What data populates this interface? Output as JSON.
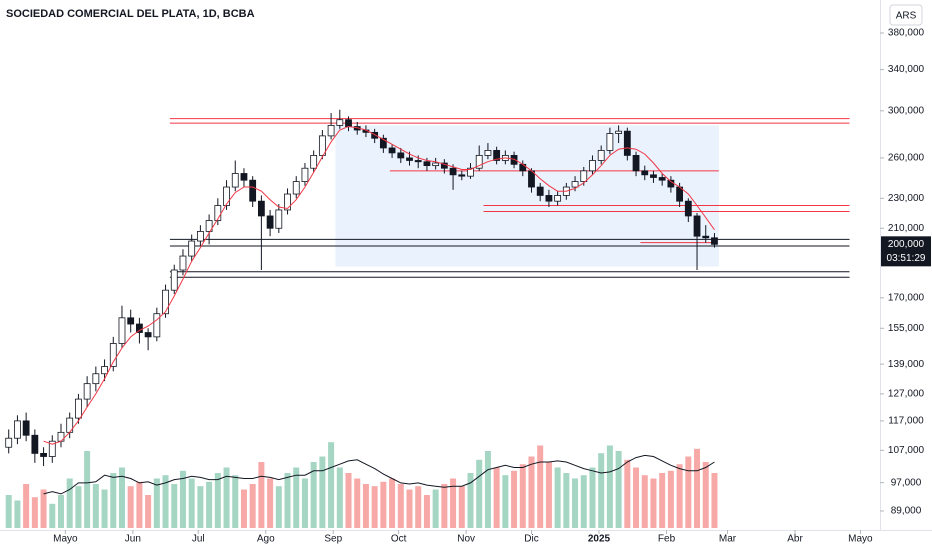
{
  "chart_data": {
    "type": "candlestick",
    "title": "SOCIEDAD COMERCIAL DEL PLATA, 1D, BCBA",
    "currency": "ARS",
    "log_scale": true,
    "up_color": "#089981",
    "down_color": "#f23645",
    "x": [
      4,
      8,
      12,
      16,
      20,
      24,
      28,
      32,
      36,
      40,
      44,
      48,
      52,
      56,
      60,
      64,
      68,
      72,
      76,
      80,
      84,
      88,
      92,
      96,
      100,
      104,
      108,
      112,
      116,
      120,
      124,
      128,
      132,
      136,
      140,
      144,
      148,
      152,
      156,
      160,
      164,
      168,
      172,
      176,
      180,
      184,
      188,
      192,
      196,
      200,
      204,
      208,
      212,
      216,
      220,
      224,
      228,
      232,
      236,
      240,
      244,
      248,
      252,
      256,
      260,
      264,
      268,
      272,
      276,
      280,
      284,
      288,
      292,
      296,
      300,
      304,
      308,
      312,
      316,
      320,
      324,
      328
    ],
    "open": [
      108000,
      111000,
      117000,
      112000,
      106000,
      105000,
      110000,
      113000,
      118000,
      125000,
      131000,
      135000,
      138000,
      148000,
      160000,
      157000,
      153000,
      151000,
      162000,
      174000,
      185000,
      193000,
      202000,
      208000,
      215000,
      225000,
      238000,
      248000,
      243000,
      228000,
      218000,
      210000,
      222000,
      233000,
      242000,
      252000,
      262000,
      278000,
      287000,
      292000,
      286000,
      283000,
      281000,
      276000,
      268000,
      264000,
      260000,
      258000,
      257000,
      254000,
      256000,
      252000,
      247000,
      246000,
      252000,
      262000,
      266000,
      258000,
      262000,
      255000,
      250000,
      238000,
      232000,
      228000,
      232000,
      238000,
      242000,
      250000,
      258000,
      266000,
      280000,
      282000,
      262000,
      250000,
      247000,
      245000,
      243000,
      238000,
      228000,
      218000,
      205000,
      204000
    ],
    "high": [
      114000,
      119000,
      120000,
      114000,
      108000,
      112000,
      116000,
      120000,
      127000,
      134000,
      138000,
      141000,
      151000,
      166000,
      164000,
      160000,
      155000,
      165000,
      177000,
      188000,
      197000,
      206000,
      212000,
      219000,
      230000,
      243000,
      258000,
      252000,
      246000,
      232000,
      222000,
      226000,
      237000,
      246000,
      256000,
      266000,
      283000,
      298000,
      301000,
      295000,
      290000,
      287000,
      284000,
      279000,
      271000,
      268000,
      265000,
      262000,
      260000,
      260000,
      259000,
      255000,
      250000,
      256000,
      270000,
      272000,
      269000,
      266000,
      265000,
      258000,
      252000,
      241000,
      236000,
      235000,
      241000,
      246000,
      253000,
      262000,
      270000,
      285000,
      287000,
      285000,
      265000,
      254000,
      250000,
      248000,
      246000,
      241000,
      230000,
      220000,
      212000,
      207000
    ],
    "low": [
      106000,
      109000,
      110000,
      103000,
      102000,
      103000,
      108000,
      111000,
      116000,
      122000,
      128000,
      132000,
      136000,
      146000,
      153000,
      148000,
      145000,
      149000,
      160000,
      172000,
      182000,
      190000,
      199000,
      200000,
      212000,
      222000,
      235000,
      238000,
      224000,
      185000,
      205000,
      207000,
      219000,
      230000,
      239000,
      249000,
      259000,
      275000,
      284000,
      282000,
      279000,
      277000,
      272000,
      264000,
      260000,
      256000,
      254000,
      252000,
      250000,
      251000,
      248000,
      236000,
      243000,
      244000,
      250000,
      259000,
      255000,
      255000,
      252000,
      246000,
      234000,
      228000,
      224000,
      225000,
      229000,
      235000,
      239000,
      247000,
      255000,
      263000,
      272000,
      258000,
      246000,
      243000,
      241000,
      239000,
      234000,
      224000,
      214000,
      185000,
      201000,
      198000
    ],
    "close": [
      111000,
      117000,
      112000,
      106000,
      105000,
      110000,
      113000,
      118000,
      125000,
      131000,
      135000,
      138000,
      148000,
      160000,
      157000,
      153000,
      151000,
      162000,
      174000,
      185000,
      193000,
      202000,
      208000,
      215000,
      225000,
      238000,
      248000,
      243000,
      228000,
      218000,
      210000,
      222000,
      233000,
      242000,
      252000,
      262000,
      278000,
      287000,
      292000,
      286000,
      283000,
      281000,
      276000,
      268000,
      264000,
      260000,
      258000,
      257000,
      254000,
      256000,
      252000,
      247000,
      246000,
      252000,
      262000,
      266000,
      258000,
      262000,
      255000,
      250000,
      238000,
      232000,
      228000,
      232000,
      238000,
      242000,
      250000,
      258000,
      266000,
      280000,
      282000,
      262000,
      250000,
      247000,
      245000,
      243000,
      238000,
      228000,
      218000,
      205000,
      204000,
      200000
    ],
    "ma": {
      "color": "#f23645",
      "values": [
        null,
        null,
        null,
        null,
        110000,
        109000,
        110000,
        113000,
        117000,
        122000,
        127000,
        133000,
        140000,
        146000,
        151000,
        154000,
        156000,
        159000,
        163000,
        171000,
        180000,
        190000,
        198000,
        207000,
        216000,
        226000,
        234000,
        238000,
        238000,
        235000,
        229000,
        224000,
        223000,
        229000,
        238000,
        249000,
        261000,
        273000,
        283000,
        286000,
        285000,
        283000,
        279000,
        275000,
        271000,
        267000,
        263000,
        260000,
        258000,
        257000,
        255000,
        253000,
        251000,
        251000,
        254000,
        257000,
        259000,
        260000,
        259000,
        255000,
        250000,
        244000,
        239000,
        235000,
        235000,
        237000,
        241000,
        247000,
        254000,
        262000,
        267000,
        268000,
        267000,
        263000,
        256000,
        248000,
        242000,
        238000,
        233000,
        225000,
        217000,
        209000
      ]
    },
    "volume": {
      "ylim": [
        0,
        100000
      ],
      "up_color": "#a5d6c4",
      "down_color": "#f7a9a7",
      "values": [
        30000,
        25000,
        40000,
        28000,
        35000,
        22000,
        30000,
        45000,
        38000,
        70000,
        40000,
        35000,
        50000,
        55000,
        38000,
        42000,
        30000,
        45000,
        48000,
        40000,
        52000,
        45000,
        38000,
        42000,
        50000,
        55000,
        48000,
        35000,
        40000,
        60000,
        45000,
        38000,
        50000,
        55000,
        45000,
        60000,
        65000,
        78000,
        55000,
        50000,
        45000,
        40000,
        38000,
        42000,
        45000,
        40000,
        35000,
        38000,
        30000,
        35000,
        40000,
        45000,
        38000,
        50000,
        62000,
        70000,
        55000,
        48000,
        52000,
        58000,
        65000,
        75000,
        60000,
        55000,
        50000,
        45000,
        48000,
        55000,
        68000,
        75000,
        70000,
        62000,
        55000,
        48000,
        45000,
        50000,
        52000,
        58000,
        65000,
        72000,
        60000,
        50000
      ]
    },
    "volume_ma": {
      "color": "#131722",
      "values": [
        null,
        null,
        null,
        null,
        31000,
        33000,
        31000,
        35000,
        41000,
        41000,
        42000,
        48000,
        46000,
        47000,
        45000,
        41000,
        42000,
        39000,
        41000,
        44000,
        45000,
        47000,
        46000,
        44000,
        44000,
        47000,
        46000,
        45000,
        45000,
        47000,
        46000,
        44000,
        46000,
        48000,
        48000,
        52000,
        52000,
        55000,
        58000,
        61000,
        62000,
        58000,
        54000,
        49000,
        45000,
        41000,
        40000,
        41000,
        39000,
        38000,
        37000,
        38000,
        38000,
        41000,
        47000,
        53000,
        55000,
        57000,
        55000,
        55000,
        58000,
        60000,
        60000,
        61000,
        60000,
        57000,
        54000,
        52000,
        50000,
        51000,
        54000,
        60000,
        64000,
        66000,
        65000,
        61000,
        57000,
        54000,
        52000,
        52000,
        55000,
        60000
      ]
    },
    "xlim": [
      0,
      404
    ],
    "xticks": [
      {
        "value": 30,
        "label": "Mayo"
      },
      {
        "value": 61,
        "label": "Jun"
      },
      {
        "value": 91,
        "label": "Jul"
      },
      {
        "value": 122,
        "label": "Ago"
      },
      {
        "value": 153,
        "label": "Sep"
      },
      {
        "value": 183,
        "label": "Oct"
      },
      {
        "value": 214,
        "label": "Nov"
      },
      {
        "value": 244,
        "label": "Dic"
      },
      {
        "value": 275,
        "label": "2025",
        "bold": true
      },
      {
        "value": 306,
        "label": "Feb"
      },
      {
        "value": 334,
        "label": "Mar"
      },
      {
        "value": 365,
        "label": "Abr"
      },
      {
        "value": 395,
        "label": "Mayo"
      }
    ],
    "ylim": [
      84000,
      420000
    ],
    "yticks": [
      {
        "value": 89000,
        "label": "89,000"
      },
      {
        "value": 97000,
        "label": "97,000"
      },
      {
        "value": 107000,
        "label": "107,000"
      },
      {
        "value": 117000,
        "label": "117,000"
      },
      {
        "value": 127000,
        "label": "127,000"
      },
      {
        "value": 139000,
        "label": "139,000"
      },
      {
        "value": 155000,
        "label": "155,000"
      },
      {
        "value": 170000,
        "label": "170,000"
      },
      {
        "value": 210000,
        "label": "210,000"
      },
      {
        "value": 230000,
        "label": "230,000"
      },
      {
        "value": 260000,
        "label": "260,000"
      },
      {
        "value": 300000,
        "label": "300,000"
      },
      {
        "value": 340000,
        "label": "340,000"
      },
      {
        "value": 380000,
        "label": "380,000"
      }
    ],
    "levels": [
      {
        "value": 293000,
        "color": "#f23645",
        "x": [
          78,
          390
        ]
      },
      {
        "value": 289000,
        "color": "#f23645",
        "x": [
          78,
          390
        ]
      },
      {
        "value": 250000,
        "color": "#f23645",
        "x": [
          179,
          330
        ]
      },
      {
        "value": 225000,
        "color": "#f23645",
        "x": [
          222,
          390
        ]
      },
      {
        "value": 221000,
        "color": "#f23645",
        "x": [
          222,
          390
        ]
      },
      {
        "value": 201000,
        "color": "#f23645",
        "x": [
          294,
          328
        ]
      },
      {
        "value": 203000,
        "color": "#131722",
        "x": [
          78,
          390
        ]
      },
      {
        "value": 199000,
        "color": "#131722",
        "x": [
          78,
          390
        ]
      },
      {
        "value": 184000,
        "color": "#131722",
        "x": [
          78,
          390
        ]
      },
      {
        "value": 181000,
        "color": "#131722",
        "x": [
          78,
          390
        ]
      }
    ],
    "ranges": [
      {
        "x": [
          154,
          330
        ],
        "y": [
          187000,
          287000
        ],
        "color": "#e3effc"
      }
    ],
    "last_price": {
      "value": 200000,
      "label": "200,000",
      "countdown": "03:51:29"
    }
  }
}
